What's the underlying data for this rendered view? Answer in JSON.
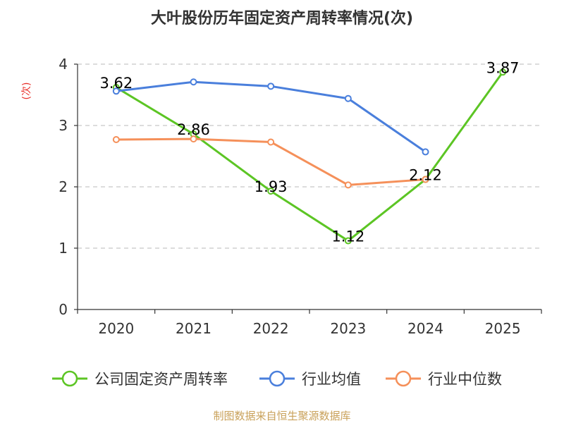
{
  "chart_data": {
    "type": "line",
    "title": "大叶股份历年固定资产周转率情况(次)",
    "ylabel": "(次)",
    "xlabel": "",
    "categories": [
      "2020",
      "2021",
      "2022",
      "2023",
      "2024",
      "2025"
    ],
    "ylim": [
      0,
      4
    ],
    "yticks": [
      0,
      1,
      2,
      3,
      4
    ],
    "grid": true,
    "legend_position": "bottom",
    "series": [
      {
        "name": "公司固定资产周转率",
        "color": "#5cc524",
        "values": [
          3.62,
          2.86,
          1.93,
          1.12,
          2.12,
          3.87
        ],
        "labels": [
          "3.62",
          "2.86",
          "1.93",
          "1.12",
          "2.12",
          "3.87"
        ]
      },
      {
        "name": "行业均值",
        "color": "#4a7fdc",
        "values": [
          3.56,
          3.71,
          3.64,
          3.44,
          2.57,
          null
        ],
        "labels": null
      },
      {
        "name": "行业中位数",
        "color": "#f5905a",
        "values": [
          2.77,
          2.78,
          2.73,
          2.03,
          2.12,
          null
        ],
        "labels": null
      }
    ],
    "source": "制图数据来自恒生聚源数据库"
  }
}
